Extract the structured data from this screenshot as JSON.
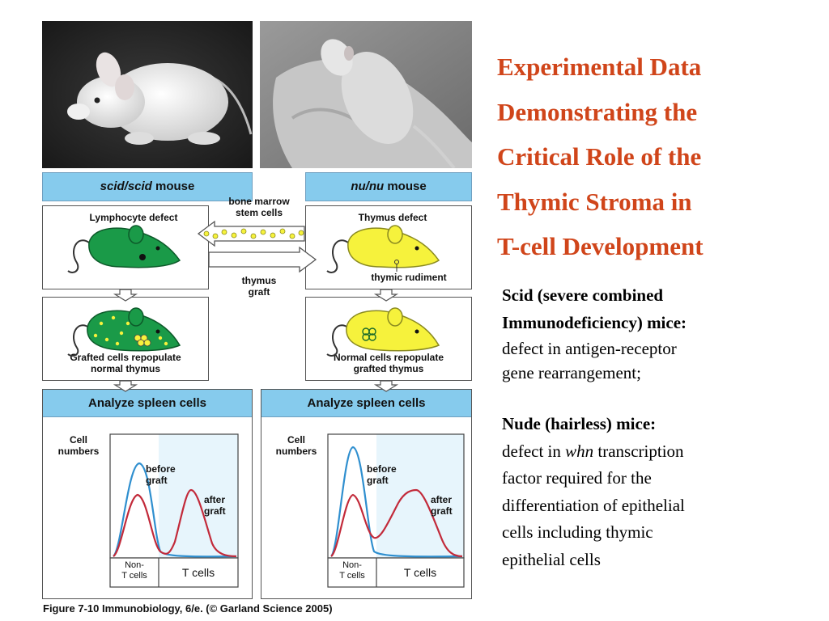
{
  "title": {
    "line1": "Experimental Data",
    "line2": "Demonstrating the",
    "line3": "Critical Role of the",
    "line4": "Thymic Stroma in",
    "line5": "T-cell Development"
  },
  "scid_text": {
    "heading1": "Scid (severe combined",
    "heading2": "Immunodeficiency) mice:",
    "body1": "defect in antigen-receptor",
    "body2": "gene rearrangement;"
  },
  "nude_text": {
    "heading": "Nude (hairless) mice:",
    "body1_pre": "defect in ",
    "body1_italic": "whn",
    "body1_post": " transcription",
    "body2": "factor required for the",
    "body3": "differentiation of epithelial",
    "body4": "cells including thymic",
    "body5": "epithelial cells"
  },
  "figure": {
    "left_header_italic": "scid/scid",
    "left_header_rest": " mouse",
    "right_header_italic": "nu/nu",
    "right_header_rest": " mouse",
    "bone_marrow_1": "bone marrow",
    "bone_marrow_2": "stem cells",
    "thymus_graft_1": "thymus",
    "thymus_graft_2": "graft",
    "lymphocyte_defect": "Lymphocyte defect",
    "thymus_defect": "Thymus defect",
    "thymic_rudiment": "thymic rudiment",
    "grafted_1": "Grafted cells repopulate",
    "grafted_2": "normal thymus",
    "normal_1": "Normal cells repopulate",
    "normal_2": "grafted thymus",
    "analyze_left": "Analyze spleen cells",
    "analyze_right": "Analyze spleen cells",
    "cell_1": "Cell",
    "cell_2": "numbers",
    "before_1": "before",
    "before_2": "graft",
    "after_1": "after",
    "after_2": "graft",
    "non_t_1": "Non-",
    "non_t_2": "T cells",
    "t_cells": "T cells",
    "caption": "Figure 7-10  Immunobiology, 6/e. (© Garland Science 2005)"
  },
  "colors": {
    "title": "#d0451a",
    "header_blue": "#86cbed",
    "green_mouse": "#1a9a48",
    "yellow_mouse": "#f6f23c",
    "before_curve": "#2f8fcf",
    "after_curve": "#c22a3a"
  }
}
